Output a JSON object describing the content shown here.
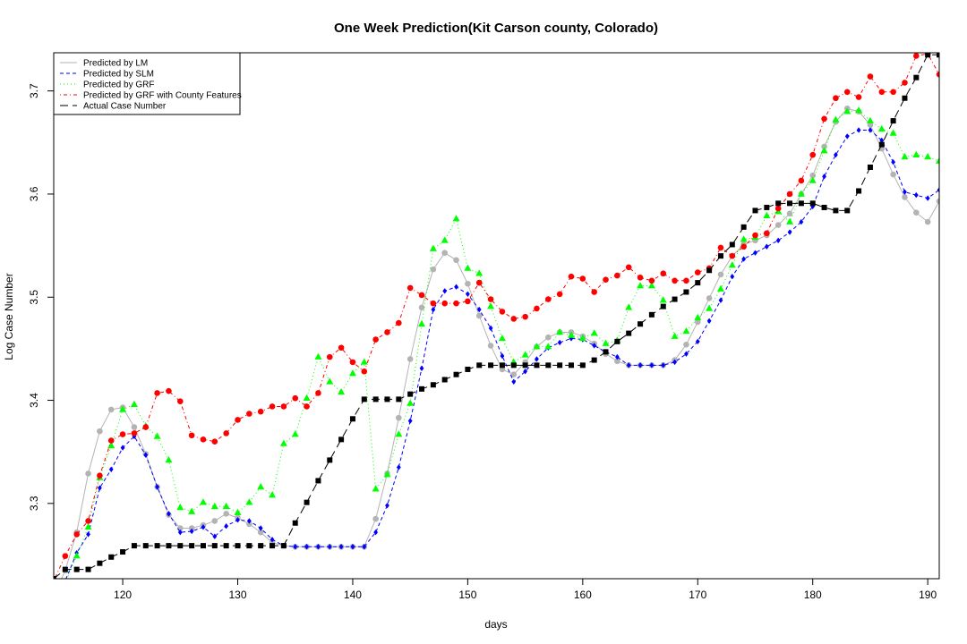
{
  "chart_data": {
    "type": "line",
    "title": "One Week Prediction(Kit Carson county, Colorado)",
    "xlabel": "days",
    "ylabel": "Log Case Number",
    "xlim": [
      114,
      191
    ],
    "ylim": [
      3.227,
      3.737
    ],
    "xticks": [
      120,
      130,
      140,
      150,
      160,
      170,
      180,
      190
    ],
    "yticks": [
      3.3,
      3.4,
      3.5,
      3.6,
      3.7
    ],
    "grid": false,
    "legend_position": "top-left",
    "x": [
      114,
      115,
      116,
      117,
      118,
      119,
      120,
      121,
      122,
      123,
      124,
      125,
      126,
      127,
      128,
      129,
      130,
      131,
      132,
      133,
      134,
      135,
      136,
      137,
      138,
      139,
      140,
      141,
      142,
      143,
      144,
      145,
      146,
      147,
      148,
      149,
      150,
      151,
      152,
      153,
      154,
      155,
      156,
      157,
      158,
      159,
      160,
      161,
      162,
      163,
      164,
      165,
      166,
      167,
      168,
      169,
      170,
      171,
      172,
      173,
      174,
      175,
      176,
      177,
      178,
      179,
      180,
      181,
      182,
      183,
      184,
      185,
      186,
      187,
      188,
      189,
      190,
      191
    ],
    "series": [
      {
        "name": "Predicted by LM",
        "color": "#b3b3b3",
        "line": "solid",
        "marker": "circle",
        "values": [
          3.21,
          3.235,
          3.272,
          3.329,
          3.37,
          3.391,
          3.393,
          3.374,
          3.348,
          3.316,
          3.289,
          3.276,
          3.276,
          3.279,
          3.283,
          3.29,
          3.286,
          3.28,
          3.272,
          3.262,
          3.259,
          3.258,
          3.258,
          3.258,
          3.258,
          3.258,
          3.258,
          3.258,
          3.285,
          3.329,
          3.383,
          3.44,
          3.49,
          3.527,
          3.543,
          3.536,
          3.513,
          3.482,
          3.453,
          3.43,
          3.425,
          3.437,
          3.452,
          3.461,
          3.466,
          3.466,
          3.462,
          3.455,
          3.445,
          3.438,
          3.434,
          3.434,
          3.434,
          3.434,
          3.439,
          3.454,
          3.476,
          3.499,
          3.522,
          3.54,
          3.551,
          3.555,
          3.56,
          3.57,
          3.581,
          3.6,
          3.618,
          3.646,
          3.67,
          3.683,
          3.68,
          3.667,
          3.644,
          3.619,
          3.597,
          3.582,
          3.573,
          3.593
        ]
      },
      {
        "name": "Predicted by SLM",
        "color": "#0000ff",
        "line": "dashed",
        "marker": "diamond",
        "values": [
          3.205,
          3.225,
          3.252,
          3.27,
          3.315,
          3.333,
          3.354,
          3.365,
          3.347,
          3.316,
          3.29,
          3.272,
          3.273,
          3.277,
          3.268,
          3.278,
          3.284,
          3.283,
          3.276,
          3.265,
          3.259,
          3.258,
          3.258,
          3.258,
          3.258,
          3.258,
          3.258,
          3.258,
          3.272,
          3.298,
          3.335,
          3.38,
          3.431,
          3.488,
          3.506,
          3.51,
          3.503,
          3.488,
          3.47,
          3.443,
          3.418,
          3.428,
          3.44,
          3.451,
          3.456,
          3.46,
          3.459,
          3.453,
          3.447,
          3.442,
          3.434,
          3.434,
          3.434,
          3.434,
          3.437,
          3.445,
          3.457,
          3.477,
          3.497,
          3.52,
          3.537,
          3.543,
          3.549,
          3.555,
          3.563,
          3.573,
          3.588,
          3.617,
          3.638,
          3.656,
          3.662,
          3.662,
          3.652,
          3.631,
          3.602,
          3.599,
          3.596,
          3.604
        ]
      },
      {
        "name": "Predicted by GRF",
        "color": "#00ff00",
        "line": "dotted",
        "marker": "triangle",
        "values": [
          3.215,
          3.223,
          3.249,
          3.277,
          3.325,
          3.356,
          3.391,
          3.396,
          3.375,
          3.365,
          3.342,
          3.296,
          3.292,
          3.301,
          3.297,
          3.297,
          3.291,
          3.301,
          3.316,
          3.308,
          3.358,
          3.367,
          3.402,
          3.442,
          3.418,
          3.408,
          3.426,
          3.437,
          3.314,
          3.328,
          3.367,
          3.397,
          3.474,
          3.547,
          3.555,
          3.576,
          3.528,
          3.523,
          3.491,
          3.46,
          3.437,
          3.444,
          3.452,
          3.452,
          3.466,
          3.463,
          3.46,
          3.465,
          3.455,
          3.458,
          3.49,
          3.511,
          3.511,
          3.497,
          3.462,
          3.467,
          3.48,
          3.489,
          3.508,
          3.531,
          3.556,
          3.558,
          3.579,
          3.583,
          3.573,
          3.6,
          3.613,
          3.642,
          3.672,
          3.68,
          3.681,
          3.671,
          3.663,
          3.659,
          3.636,
          3.638,
          3.636,
          3.632
        ]
      },
      {
        "name": "Predicted by GRF with County Features",
        "color": "#ff0000",
        "line": "dotdash",
        "marker": "circle",
        "values": [
          3.225,
          3.249,
          3.27,
          3.283,
          3.327,
          3.361,
          3.367,
          3.368,
          3.374,
          3.407,
          3.409,
          3.399,
          3.366,
          3.362,
          3.36,
          3.368,
          3.381,
          3.387,
          3.389,
          3.394,
          3.394,
          3.402,
          3.394,
          3.407,
          3.442,
          3.451,
          3.437,
          3.428,
          3.459,
          3.466,
          3.475,
          3.509,
          3.502,
          3.494,
          3.494,
          3.494,
          3.496,
          3.514,
          3.498,
          3.486,
          3.479,
          3.481,
          3.489,
          3.498,
          3.503,
          3.52,
          3.518,
          3.505,
          3.517,
          3.521,
          3.529,
          3.519,
          3.516,
          3.523,
          3.516,
          3.516,
          3.524,
          3.528,
          3.548,
          3.54,
          3.549,
          3.56,
          3.562,
          3.586,
          3.6,
          3.613,
          3.638,
          3.673,
          3.693,
          3.699,
          3.694,
          3.714,
          3.699,
          3.699,
          3.708,
          3.734,
          3.736,
          3.716
        ]
      },
      {
        "name": "Actual Case Number",
        "color": "#000000",
        "line": "longdash",
        "marker": "square",
        "values": [
          3.227,
          3.236,
          3.236,
          3.236,
          3.242,
          3.248,
          3.253,
          3.259,
          3.259,
          3.259,
          3.259,
          3.259,
          3.259,
          3.259,
          3.259,
          3.259,
          3.259,
          3.259,
          3.259,
          3.259,
          3.259,
          3.281,
          3.301,
          3.322,
          3.342,
          3.362,
          3.382,
          3.401,
          3.401,
          3.401,
          3.401,
          3.406,
          3.411,
          3.415,
          3.42,
          3.425,
          3.43,
          3.434,
          3.434,
          3.434,
          3.434,
          3.434,
          3.434,
          3.434,
          3.434,
          3.434,
          3.434,
          3.439,
          3.447,
          3.457,
          3.465,
          3.474,
          3.483,
          3.491,
          3.498,
          3.505,
          3.514,
          3.526,
          3.54,
          3.551,
          3.568,
          3.584,
          3.587,
          3.591,
          3.591,
          3.591,
          3.591,
          3.587,
          3.584,
          3.584,
          3.603,
          3.626,
          3.648,
          3.671,
          3.693,
          3.713,
          3.735,
          3.735
        ]
      }
    ]
  }
}
